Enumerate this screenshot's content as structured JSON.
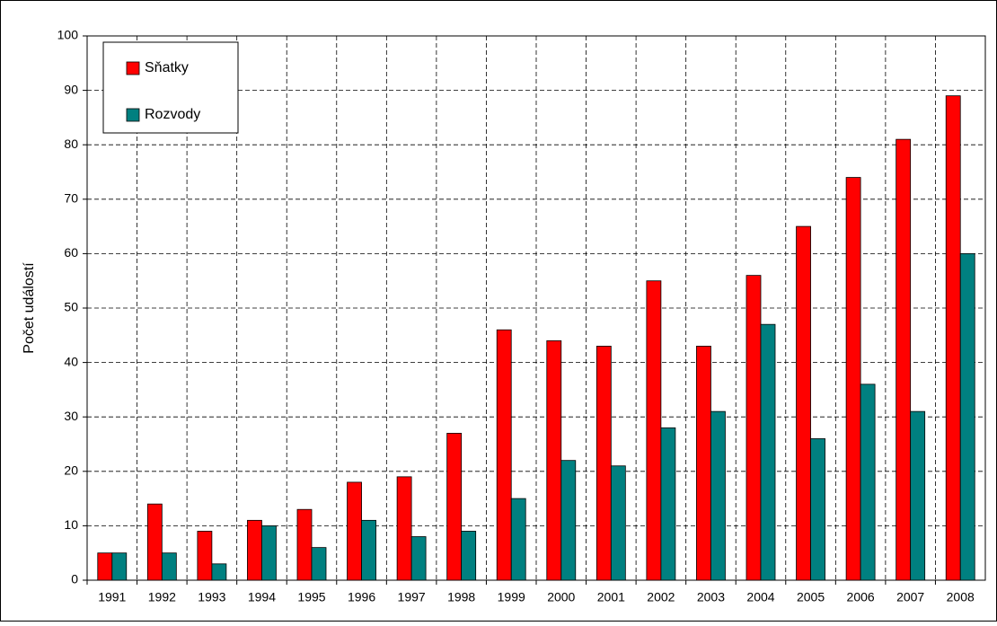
{
  "chart_data": {
    "type": "bar",
    "y_label": "Počet událostí",
    "categories": [
      "1991",
      "1992",
      "1993",
      "1994",
      "1995",
      "1996",
      "1997",
      "1998",
      "1999",
      "2000",
      "2001",
      "2002",
      "2003",
      "2004",
      "2005",
      "2006",
      "2007",
      "2008"
    ],
    "series": [
      {
        "name": "Sňatky",
        "color": "#ff0000",
        "values": [
          5,
          14,
          9,
          11,
          13,
          18,
          19,
          27,
          46,
          44,
          43,
          55,
          43,
          56,
          65,
          74,
          81,
          89
        ]
      },
      {
        "name": "Rozvody",
        "color": "#008080",
        "values": [
          5,
          5,
          3,
          10,
          6,
          11,
          8,
          9,
          15,
          22,
          21,
          28,
          31,
          47,
          26,
          36,
          31,
          60
        ]
      }
    ],
    "ylim": [
      0,
      100
    ],
    "yticks": [
      0,
      10,
      20,
      30,
      40,
      50,
      60,
      70,
      80,
      90,
      100
    ],
    "grid": true,
    "legend": "top-left"
  }
}
